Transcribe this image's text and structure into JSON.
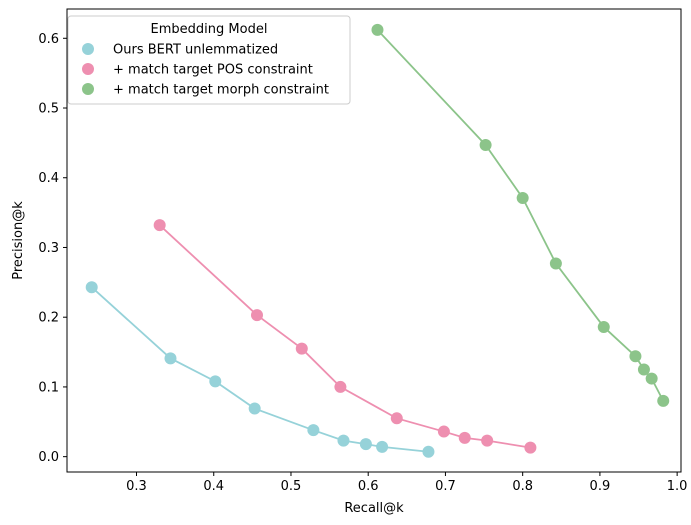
{
  "chart_data": {
    "type": "scatter",
    "xlabel": "Recall@k",
    "ylabel": "Precision@k",
    "xlim": [
      0.21,
      1.005
    ],
    "ylim": [
      -0.022,
      0.642
    ],
    "xticks": [
      0.3,
      0.4,
      0.5,
      0.6,
      0.7,
      0.8,
      0.9,
      1.0
    ],
    "xtick_labels": [
      "0.3",
      "0.4",
      "0.5",
      "0.6",
      "0.7",
      "0.8",
      "0.9",
      "1.0"
    ],
    "yticks": [
      0.0,
      0.1,
      0.2,
      0.3,
      0.4,
      0.5,
      0.6
    ],
    "ytick_labels": [
      "0.0",
      "0.1",
      "0.2",
      "0.3",
      "0.4",
      "0.5",
      "0.6"
    ],
    "grid": false,
    "legend": {
      "title": "Embedding Model",
      "placement": "top-left"
    },
    "series": [
      {
        "name": "Ours BERT unlemmatized",
        "color": "#96d2d9",
        "x": [
          0.242,
          0.344,
          0.402,
          0.453,
          0.529,
          0.568,
          0.597,
          0.618,
          0.678
        ],
        "y": [
          0.243,
          0.141,
          0.108,
          0.069,
          0.038,
          0.023,
          0.018,
          0.014,
          0.007
        ]
      },
      {
        "name": "+ match target POS constraint",
        "color": "#ee8fb0",
        "x": [
          0.33,
          0.456,
          0.514,
          0.564,
          0.637,
          0.698,
          0.725,
          0.754,
          0.81
        ],
        "y": [
          0.332,
          0.203,
          0.155,
          0.1,
          0.055,
          0.036,
          0.027,
          0.023,
          0.013
        ]
      },
      {
        "name": "+ match target morph constraint",
        "color": "#8cc48a",
        "x": [
          0.612,
          0.752,
          0.8,
          0.843,
          0.905,
          0.946,
          0.957,
          0.967,
          0.982
        ],
        "y": [
          0.612,
          0.447,
          0.371,
          0.277,
          0.186,
          0.144,
          0.125,
          0.112,
          0.08
        ]
      }
    ]
  }
}
